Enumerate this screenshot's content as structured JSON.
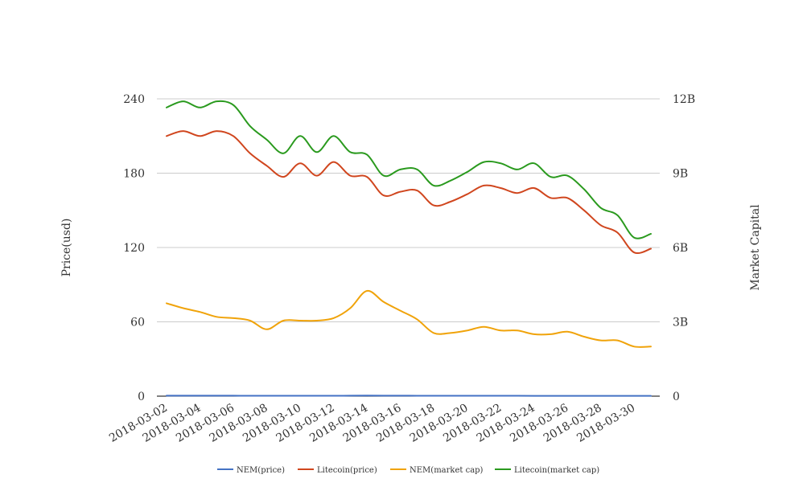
{
  "chart_data": {
    "type": "line",
    "title": "",
    "x": [
      "2018-03-02",
      "2018-03-03",
      "2018-03-04",
      "2018-03-05",
      "2018-03-06",
      "2018-03-07",
      "2018-03-08",
      "2018-03-09",
      "2018-03-10",
      "2018-03-11",
      "2018-03-12",
      "2018-03-13",
      "2018-03-14",
      "2018-03-15",
      "2018-03-16",
      "2018-03-17",
      "2018-03-18",
      "2018-03-19",
      "2018-03-20",
      "2018-03-21",
      "2018-03-22",
      "2018-03-23",
      "2018-03-24",
      "2018-03-25",
      "2018-03-26",
      "2018-03-27",
      "2018-03-28",
      "2018-03-29",
      "2018-03-30",
      "2018-03-31"
    ],
    "x_tick_labels": [
      "2018-03-02",
      "2018-03-04",
      "2018-03-06",
      "2018-03-08",
      "2018-03-10",
      "2018-03-12",
      "2018-03-14",
      "2018-03-16",
      "2018-03-18",
      "2018-03-20",
      "2018-03-22",
      "2018-03-24",
      "2018-03-26",
      "2018-03-28",
      "2018-03-30"
    ],
    "y_left": {
      "label": "Price(usd)",
      "ticks": [
        0,
        60,
        120,
        180,
        240
      ],
      "tick_labels": [
        "0",
        "60",
        "120",
        "180",
        "240"
      ],
      "range": [
        0,
        240
      ]
    },
    "y_right": {
      "label": "Market Capital",
      "ticks": [
        0,
        3000000000,
        6000000000,
        9000000000,
        12000000000
      ],
      "tick_labels": [
        "0",
        "3B",
        "6B",
        "9B",
        "12B"
      ],
      "range": [
        0,
        12000000000
      ]
    },
    "grid": true,
    "legend_position": "bottom",
    "series": [
      {
        "name": "NEM(price)",
        "axis": "left",
        "color": "#4472c4",
        "values": [
          0.37,
          0.38,
          0.38,
          0.37,
          0.36,
          0.35,
          0.33,
          0.33,
          0.34,
          0.34,
          0.34,
          0.36,
          0.45,
          0.4,
          0.38,
          0.35,
          0.31,
          0.3,
          0.3,
          0.31,
          0.3,
          0.3,
          0.29,
          0.29,
          0.29,
          0.28,
          0.26,
          0.25,
          0.24,
          0.23
        ]
      },
      {
        "name": "Litecoin(price)",
        "axis": "left",
        "color": "#d0461e",
        "values": [
          210,
          214,
          210,
          214,
          210,
          196,
          186,
          177,
          188,
          178,
          189,
          178,
          177,
          162,
          165,
          166,
          154,
          157,
          163,
          170,
          168,
          164,
          168,
          160,
          160,
          150,
          138,
          132,
          116,
          119
        ]
      },
      {
        "name": "NEM(market cap)",
        "axis": "right",
        "color": "#f0a30a",
        "values": [
          3750000000,
          3550000000,
          3400000000,
          3200000000,
          3150000000,
          3050000000,
          2700000000,
          3050000000,
          3050000000,
          3050000000,
          3150000000,
          3550000000,
          4250000000,
          3800000000,
          3450000000,
          3100000000,
          2550000000,
          2550000000,
          2650000000,
          2800000000,
          2650000000,
          2650000000,
          2500000000,
          2500000000,
          2600000000,
          2400000000,
          2250000000,
          2250000000,
          2000000000,
          2000000000
        ]
      },
      {
        "name": "Litecoin(market cap)",
        "axis": "right",
        "color": "#2a9a1e",
        "values": [
          11650000000,
          11900000000,
          11650000000,
          11900000000,
          11750000000,
          10900000000,
          10350000000,
          9800000000,
          10500000000,
          9850000000,
          10500000000,
          9850000000,
          9750000000,
          8900000000,
          9150000000,
          9150000000,
          8500000000,
          8700000000,
          9050000000,
          9450000000,
          9400000000,
          9150000000,
          9400000000,
          8850000000,
          8900000000,
          8350000000,
          7600000000,
          7300000000,
          6400000000,
          6550000000
        ]
      }
    ]
  }
}
